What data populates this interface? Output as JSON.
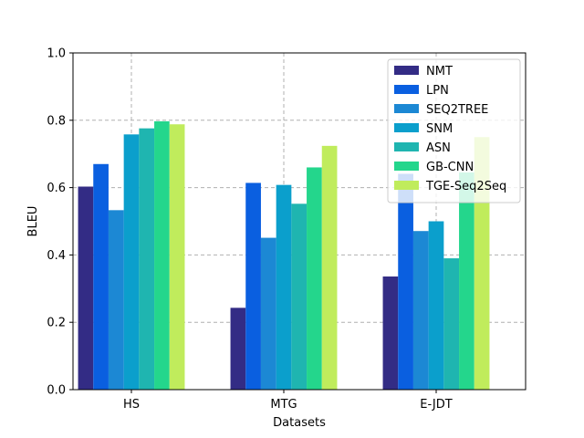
{
  "chart_data": {
    "type": "bar",
    "title": "",
    "xlabel": "Datasets",
    "ylabel": "BLEU",
    "ylim": [
      0,
      1.0
    ],
    "yticks": [
      "0.0",
      "0.2",
      "0.4",
      "0.6",
      "0.8",
      "1.0"
    ],
    "categories": [
      "HS",
      "MTG",
      "E-JDT"
    ],
    "grid": true,
    "legend_position": "top-right",
    "series": [
      {
        "name": "NMT",
        "color": "#332c85",
        "values": [
          0.603,
          0.243,
          0.336
        ]
      },
      {
        "name": "LPN",
        "color": "#0a5fe0",
        "values": [
          0.67,
          0.614,
          0.641
        ]
      },
      {
        "name": "SEQ2TREE",
        "color": "#1c88d4",
        "values": [
          0.533,
          0.451,
          0.471
        ]
      },
      {
        "name": "SNM",
        "color": "#0b9fcc",
        "values": [
          0.758,
          0.608,
          0.5
        ]
      },
      {
        "name": "ASN",
        "color": "#1fb5b0",
        "values": [
          0.776,
          0.552,
          0.39
        ]
      },
      {
        "name": "GB-CNN",
        "color": "#24d68c",
        "values": [
          0.797,
          0.66,
          0.645
        ]
      },
      {
        "name": "TGE-Seq2Seq",
        "color": "#c0ec5c",
        "values": [
          0.788,
          0.724,
          0.75
        ]
      }
    ]
  }
}
